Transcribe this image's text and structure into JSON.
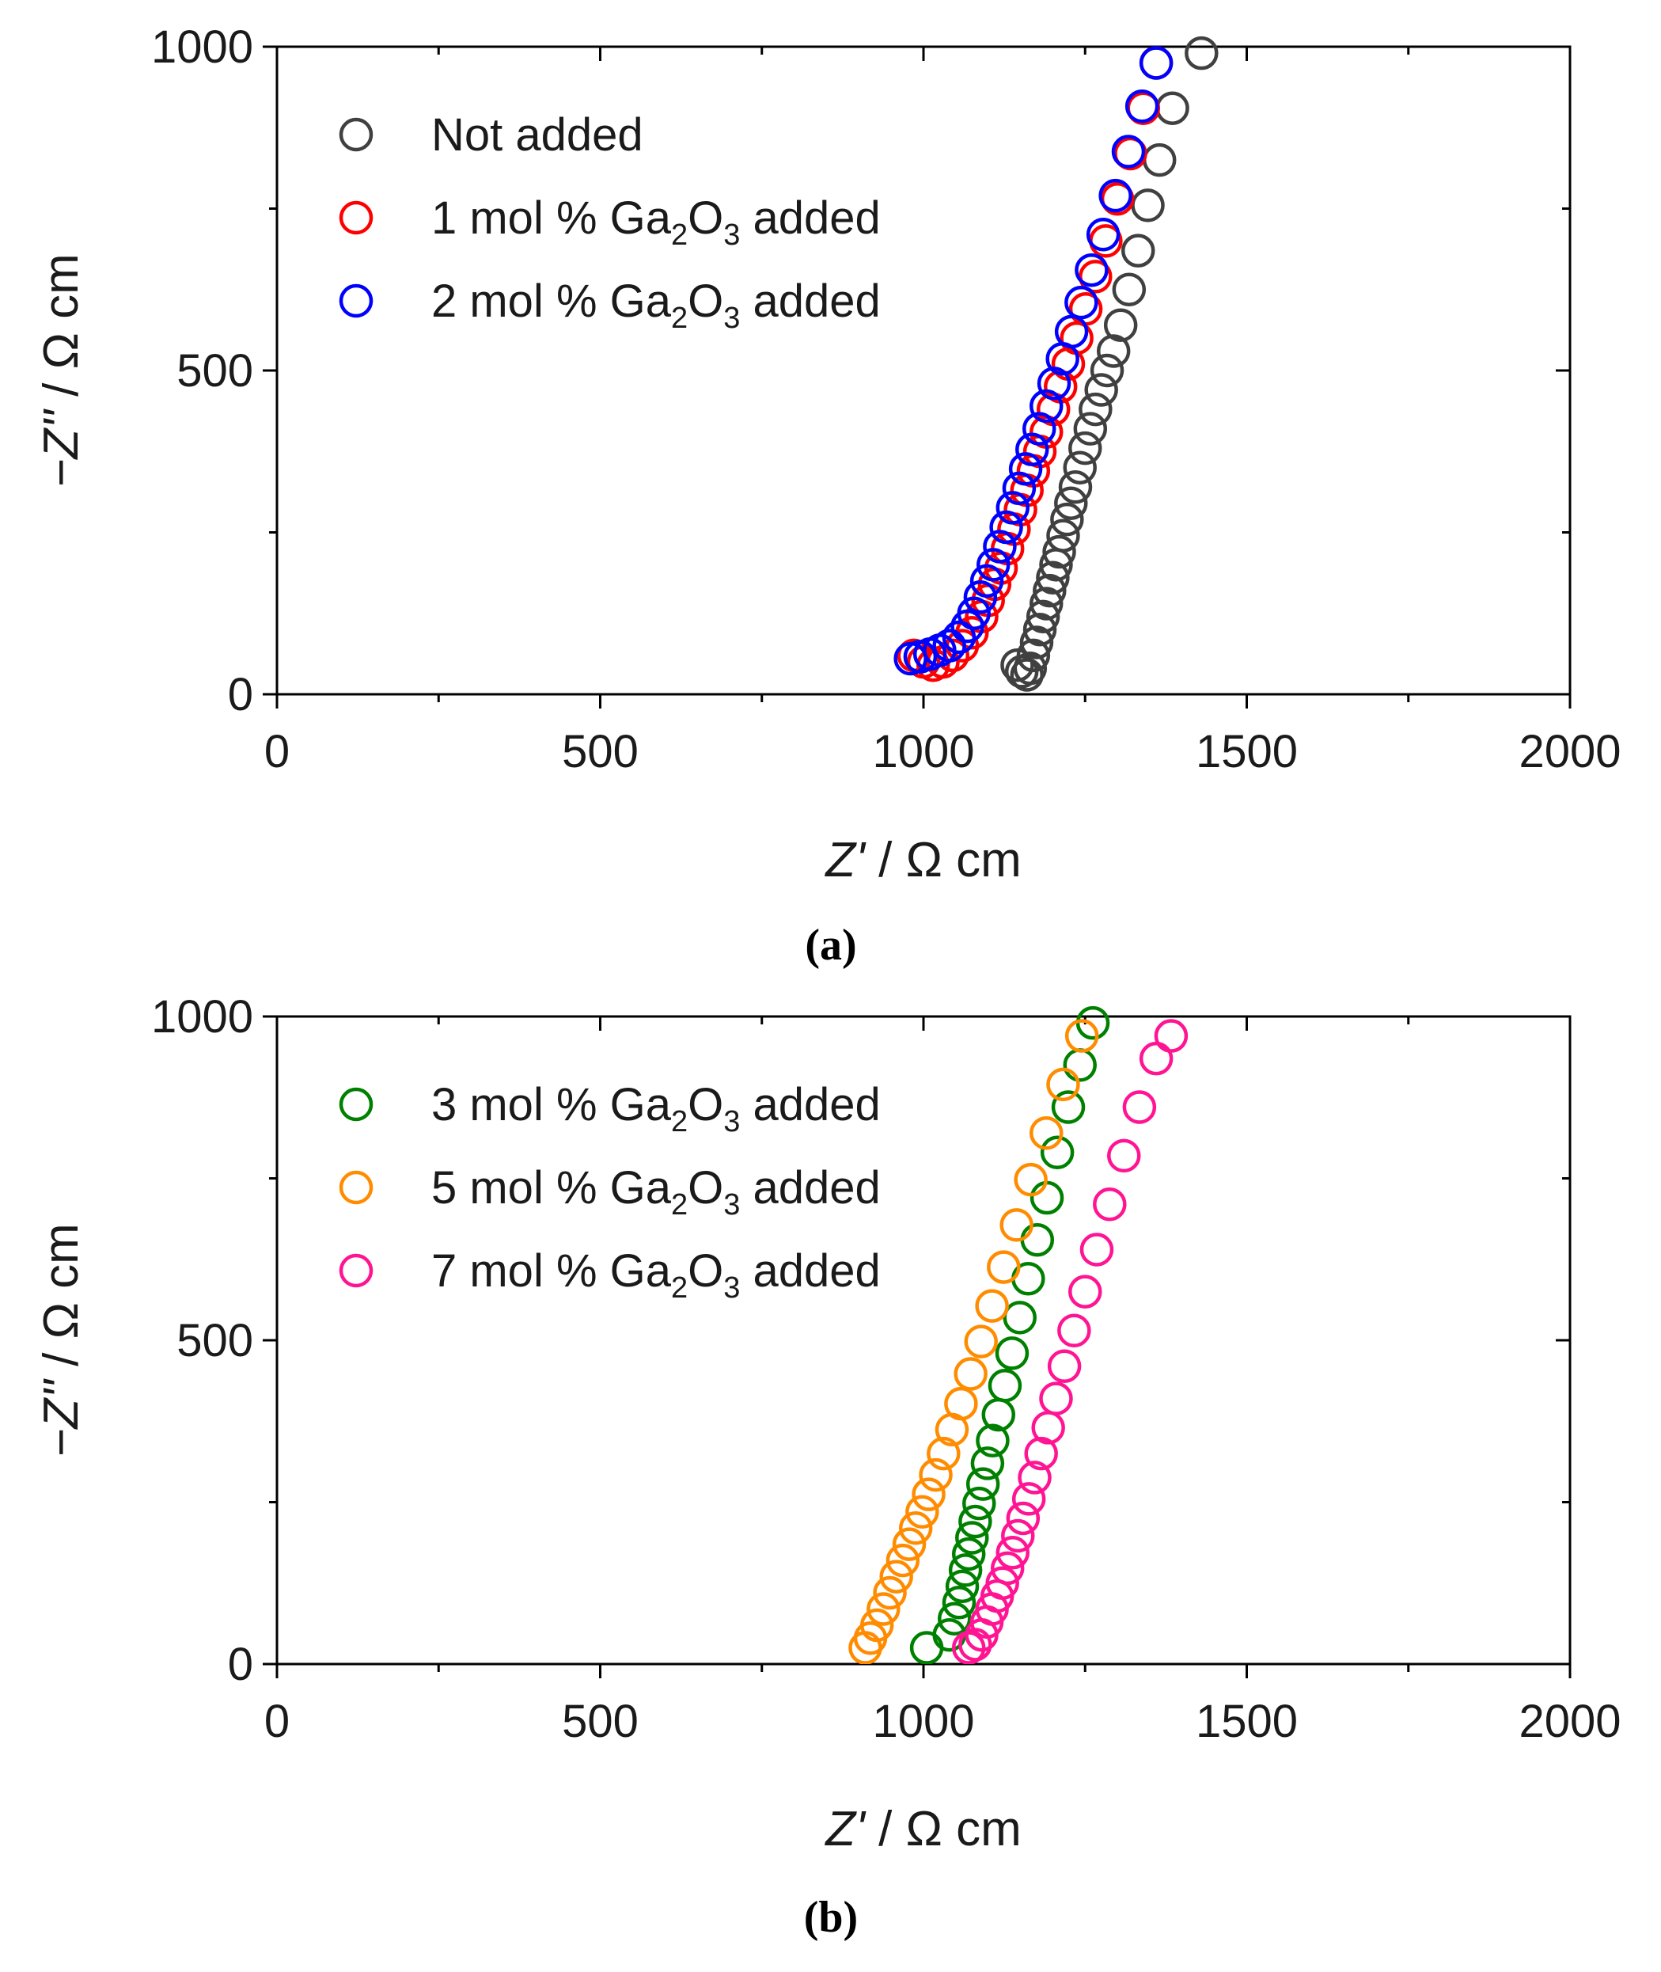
{
  "chart_data": [
    {
      "type": "scatter",
      "panel_label": "(a)",
      "xlabel_italic": "Z'",
      "xlabel_rest": " / Ω cm",
      "ylabel_italic": "−Z''",
      "ylabel_rest": " / Ω cm",
      "xlim": [
        0,
        2000
      ],
      "ylim": [
        0,
        1000
      ],
      "x_ticks": [
        0,
        500,
        1000,
        1500,
        2000
      ],
      "x_tick_labels": [
        "0",
        "500",
        "1000",
        "1500",
        "2000"
      ],
      "y_ticks": [
        0,
        500,
        1000
      ],
      "y_tick_labels": [
        "0",
        "500",
        "1000"
      ],
      "legend_position": "top-left",
      "series": [
        {
          "name": "Not added",
          "label_parts": [
            "Not added"
          ],
          "color": "#404040",
          "points": [
            [
              1145,
              45
            ],
            [
              1152,
              35
            ],
            [
              1160,
              30
            ],
            [
              1165,
              40
            ],
            [
              1170,
              60
            ],
            [
              1175,
              80
            ],
            [
              1180,
              100
            ],
            [
              1185,
              120
            ],
            [
              1190,
              140
            ],
            [
              1195,
              160
            ],
            [
              1200,
              180
            ],
            [
              1205,
              200
            ],
            [
              1210,
              220
            ],
            [
              1216,
              245
            ],
            [
              1222,
              270
            ],
            [
              1228,
              295
            ],
            [
              1235,
              320
            ],
            [
              1242,
              350
            ],
            [
              1250,
              380
            ],
            [
              1258,
              410
            ],
            [
              1266,
              440
            ],
            [
              1275,
              470
            ],
            [
              1284,
              500
            ],
            [
              1294,
              530
            ],
            [
              1305,
              570
            ],
            [
              1318,
              625
            ],
            [
              1332,
              685
            ],
            [
              1347,
              755
            ],
            [
              1365,
              825
            ],
            [
              1385,
              905
            ],
            [
              1430,
              990
            ]
          ]
        },
        {
          "name": "1 mol % Ga2O3 added",
          "label_parts": [
            "1 mol % Ga",
            "2",
            "O",
            "3",
            " added"
          ],
          "color": "#ff0000",
          "points": [
            [
              985,
              60
            ],
            [
              1000,
              50
            ],
            [
              1015,
              45
            ],
            [
              1030,
              50
            ],
            [
              1045,
              60
            ],
            [
              1060,
              75
            ],
            [
              1075,
              95
            ],
            [
              1090,
              120
            ],
            [
              1100,
              145
            ],
            [
              1110,
              170
            ],
            [
              1120,
              195
            ],
            [
              1130,
              225
            ],
            [
              1140,
              255
            ],
            [
              1150,
              285
            ],
            [
              1160,
              315
            ],
            [
              1170,
              345
            ],
            [
              1180,
              375
            ],
            [
              1190,
              405
            ],
            [
              1201,
              440
            ],
            [
              1212,
              475
            ],
            [
              1224,
              510
            ],
            [
              1237,
              550
            ],
            [
              1251,
              595
            ],
            [
              1266,
              645
            ],
            [
              1282,
              700
            ],
            [
              1300,
              765
            ],
            [
              1320,
              835
            ],
            [
              1340,
              905
            ],
            [
              1360,
              975
            ]
          ]
        },
        {
          "name": "2 mol % Ga2O3 added",
          "label_parts": [
            "2 mol % Ga",
            "2",
            "O",
            "3",
            " added"
          ],
          "color": "#0000ff",
          "points": [
            [
              980,
              55
            ],
            [
              995,
              58
            ],
            [
              1010,
              62
            ],
            [
              1025,
              68
            ],
            [
              1040,
              75
            ],
            [
              1055,
              88
            ],
            [
              1068,
              105
            ],
            [
              1078,
              125
            ],
            [
              1088,
              150
            ],
            [
              1098,
              175
            ],
            [
              1108,
              200
            ],
            [
              1118,
              228
            ],
            [
              1128,
              258
            ],
            [
              1138,
              288
            ],
            [
              1148,
              318
            ],
            [
              1158,
              348
            ],
            [
              1168,
              378
            ],
            [
              1179,
              410
            ],
            [
              1190,
              445
            ],
            [
              1202,
              480
            ],
            [
              1215,
              518
            ],
            [
              1229,
              560
            ],
            [
              1244,
              605
            ],
            [
              1260,
              655
            ],
            [
              1278,
              710
            ],
            [
              1297,
              770
            ],
            [
              1317,
              838
            ],
            [
              1338,
              908
            ],
            [
              1360,
              975
            ]
          ]
        }
      ]
    },
    {
      "type": "scatter",
      "panel_label": "(b)",
      "xlabel_italic": "Z'",
      "xlabel_rest": " / Ω cm",
      "ylabel_italic": "−Z''",
      "ylabel_rest": " / Ω cm",
      "xlim": [
        0,
        2000
      ],
      "ylim": [
        0,
        1000
      ],
      "x_ticks": [
        0,
        500,
        1000,
        1500,
        2000
      ],
      "x_tick_labels": [
        "0",
        "500",
        "1000",
        "1500",
        "2000"
      ],
      "y_ticks": [
        0,
        500,
        1000
      ],
      "y_tick_labels": [
        "0",
        "500",
        "1000"
      ],
      "legend_position": "top-left",
      "series": [
        {
          "name": "3 mol % Ga2O3 added",
          "label_parts": [
            "3 mol % Ga",
            "2",
            "O",
            "3",
            " added"
          ],
          "color": "#008000",
          "points": [
            [
              1005,
              25
            ],
            [
              1040,
              45
            ],
            [
              1048,
              70
            ],
            [
              1055,
              95
            ],
            [
              1060,
              120
            ],
            [
              1065,
              145
            ],
            [
              1070,
              170
            ],
            [
              1075,
              195
            ],
            [
              1080,
              220
            ],
            [
              1086,
              248
            ],
            [
              1092,
              278
            ],
            [
              1099,
              310
            ],
            [
              1107,
              345
            ],
            [
              1116,
              385
            ],
            [
              1126,
              430
            ],
            [
              1137,
              480
            ],
            [
              1149,
              535
            ],
            [
              1162,
              595
            ],
            [
              1176,
              655
            ],
            [
              1191,
              720
            ],
            [
              1207,
              790
            ],
            [
              1224,
              860
            ],
            [
              1242,
              925
            ],
            [
              1262,
              990
            ]
          ]
        },
        {
          "name": "5 mol % Ga2O3 added",
          "label_parts": [
            "5 mol % Ga",
            "2",
            "O",
            "3",
            " added"
          ],
          "color": "#ff8c00",
          "points": [
            [
              910,
              25
            ],
            [
              918,
              40
            ],
            [
              928,
              60
            ],
            [
              938,
              85
            ],
            [
              948,
              110
            ],
            [
              958,
              135
            ],
            [
              968,
              160
            ],
            [
              978,
              185
            ],
            [
              988,
              210
            ],
            [
              998,
              235
            ],
            [
              1008,
              262
            ],
            [
              1019,
              292
            ],
            [
              1031,
              325
            ],
            [
              1044,
              362
            ],
            [
              1058,
              402
            ],
            [
              1073,
              448
            ],
            [
              1089,
              498
            ],
            [
              1106,
              553
            ],
            [
              1124,
              613
            ],
            [
              1144,
              678
            ],
            [
              1166,
              748
            ],
            [
              1190,
              820
            ],
            [
              1216,
              895
            ],
            [
              1245,
              970
            ]
          ]
        },
        {
          "name": "7 mol % Ga2O3 added",
          "label_parts": [
            "7 mol % Ga",
            "2",
            "O",
            "3",
            " added"
          ],
          "color": "#ff1493",
          "points": [
            [
              1070,
              25
            ],
            [
              1080,
              30
            ],
            [
              1090,
              45
            ],
            [
              1098,
              65
            ],
            [
              1106,
              85
            ],
            [
              1114,
              105
            ],
            [
              1122,
              125
            ],
            [
              1130,
              148
            ],
            [
              1138,
              172
            ],
            [
              1146,
              198
            ],
            [
              1154,
              225
            ],
            [
              1163,
              255
            ],
            [
              1172,
              288
            ],
            [
              1182,
              325
            ],
            [
              1193,
              365
            ],
            [
              1205,
              410
            ],
            [
              1218,
              460
            ],
            [
              1233,
              515
            ],
            [
              1250,
              575
            ],
            [
              1268,
              640
            ],
            [
              1288,
              710
            ],
            [
              1310,
              785
            ],
            [
              1334,
              860
            ],
            [
              1360,
              935
            ],
            [
              1383,
              970
            ]
          ]
        }
      ]
    }
  ]
}
